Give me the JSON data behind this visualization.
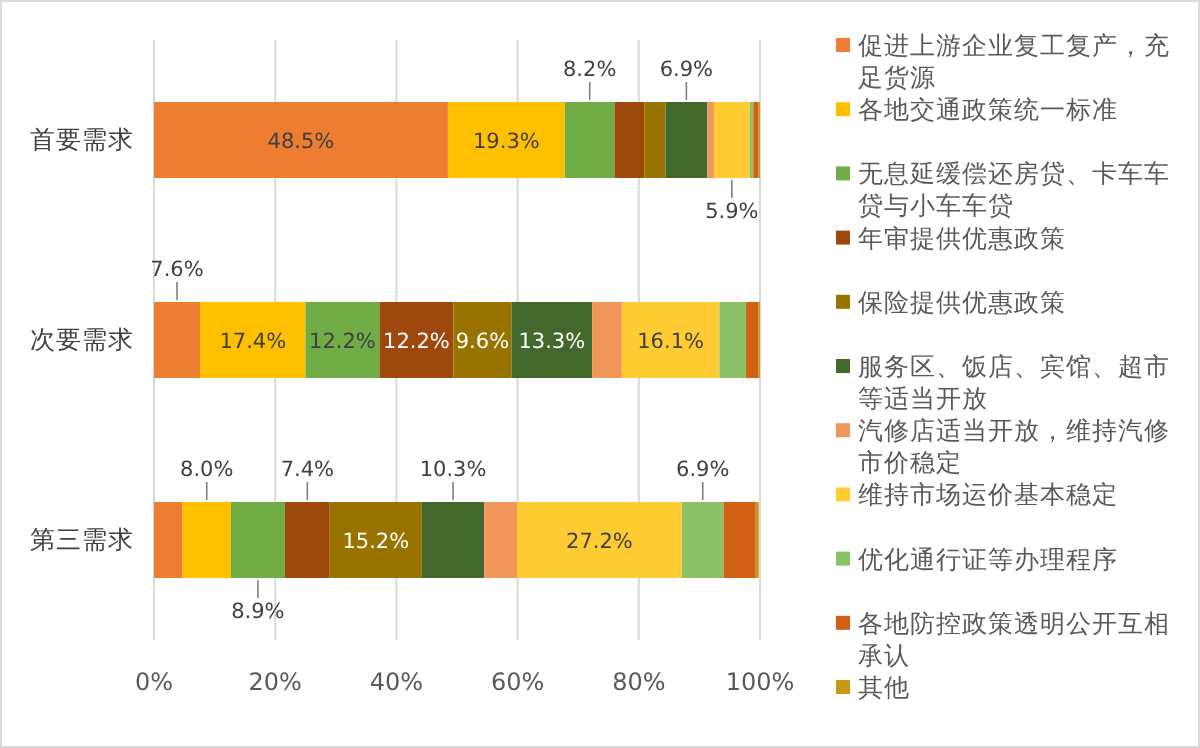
{
  "chart_data": {
    "type": "bar",
    "orientation": "horizontal",
    "stacked": true,
    "categories": [
      "首要需求",
      "次要需求",
      "第三需求"
    ],
    "xlim": [
      0,
      100
    ],
    "xticks": [
      {
        "value": 0,
        "label": "0%"
      },
      {
        "value": 20,
        "label": "20%"
      },
      {
        "value": 40,
        "label": "40%"
      },
      {
        "value": 60,
        "label": "60%"
      },
      {
        "value": 80,
        "label": "80%"
      },
      {
        "value": 100,
        "label": "100%"
      }
    ],
    "grid": "x",
    "legend": "right",
    "series": [
      {
        "name": "促进上游企业复工复产，充足货源",
        "color": "#ed7d31",
        "values": [
          48.5,
          7.6,
          4.7
        ],
        "value_labels": [
          "48.5%",
          "7.6%",
          null
        ]
      },
      {
        "name": "各地交通政策统一标准",
        "color": "#ffc000",
        "values": [
          19.3,
          17.4,
          8.0
        ],
        "value_labels": [
          "19.3%",
          "17.4%",
          "8.0%"
        ]
      },
      {
        "name": "无息延缓偿还房贷、卡车车贷与小车车贷",
        "color": "#70ad47",
        "values": [
          8.2,
          12.2,
          8.9
        ],
        "value_labels": [
          "8.2%",
          "12.2%",
          "8.9%"
        ]
      },
      {
        "name": "年审提供优惠政策",
        "color": "#9e480e",
        "values": [
          4.9,
          12.2,
          7.4
        ],
        "value_labels": [
          null,
          "12.2%",
          "7.4%"
        ]
      },
      {
        "name": "保险提供优惠政策",
        "color": "#997300",
        "values": [
          3.5,
          9.6,
          15.2
        ],
        "value_labels": [
          null,
          "9.6%",
          "15.2%"
        ]
      },
      {
        "name": "服务区、饭店、宾馆、超市等适当开放",
        "color": "#43682b",
        "values": [
          6.9,
          13.3,
          10.3
        ],
        "value_labels": [
          "6.9%",
          "13.3%",
          "10.3%"
        ]
      },
      {
        "name": "汽修店适当开放，维持汽修市价稳定",
        "color": "#f1975a",
        "values": [
          1.1,
          4.9,
          5.4
        ],
        "value_labels": [
          null,
          null,
          null
        ]
      },
      {
        "name": "维持市场运价基本稳定",
        "color": "#ffcd33",
        "values": [
          5.9,
          16.1,
          27.2
        ],
        "value_labels": [
          "5.9%",
          "16.1%",
          "27.2%"
        ]
      },
      {
        "name": "优化通行证等办理程序",
        "color": "#8cc168",
        "values": [
          0.6,
          4.4,
          6.9
        ],
        "value_labels": [
          null,
          null,
          "6.9%"
        ]
      },
      {
        "name": "各地防控政策透明公开互相承认",
        "color": "#d26012",
        "values": [
          0.8,
          2.0,
          5.3
        ],
        "value_labels": [
          null,
          null,
          null
        ]
      },
      {
        "name": "其他",
        "color": "#c99a1a",
        "values": [
          0.3,
          0.3,
          0.5
        ],
        "value_labels": [
          null,
          null,
          null
        ]
      }
    ]
  }
}
